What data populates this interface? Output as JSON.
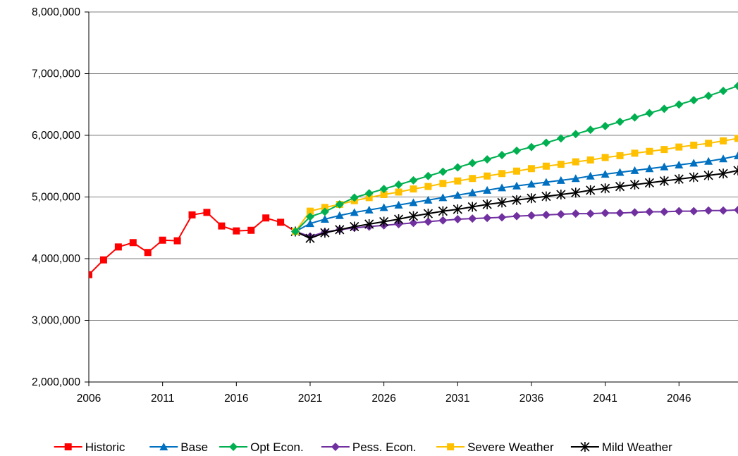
{
  "chart_data": {
    "type": "line",
    "title": "",
    "xlabel": "",
    "ylabel": "",
    "xlim": [
      2006,
      2050
    ],
    "ylim": [
      2000000,
      8000000
    ],
    "x_ticks": [
      2006,
      2011,
      2016,
      2021,
      2026,
      2031,
      2036,
      2041,
      2046
    ],
    "x_tick_labels": [
      "2006",
      "2011",
      "2016",
      "2021",
      "2026",
      "2031",
      "2036",
      "2041",
      "2046"
    ],
    "y_ticks": [
      2000000,
      3000000,
      4000000,
      5000000,
      6000000,
      7000000,
      8000000
    ],
    "y_tick_labels": [
      "2,000,000",
      "3,000,000",
      "4,000,000",
      "5,000,000",
      "6,000,000",
      "7,000,000",
      "8,000,000"
    ],
    "grid": "horizontal",
    "legend_position": "bottom",
    "series": [
      {
        "name": "Historic",
        "color": "#ff0000",
        "marker": "square",
        "x": [
          2006,
          2007,
          2008,
          2009,
          2010,
          2011,
          2012,
          2013,
          2014,
          2015,
          2016,
          2017,
          2018,
          2019,
          2020
        ],
        "values": [
          3740000,
          3980000,
          4190000,
          4260000,
          4100000,
          4300000,
          4290000,
          4710000,
          4750000,
          4530000,
          4450000,
          4460000,
          4660000,
          4590000,
          4440000
        ]
      },
      {
        "name": "Base",
        "color": "#0070c0",
        "marker": "triangle",
        "x": [
          2020,
          2021,
          2022,
          2023,
          2024,
          2025,
          2026,
          2027,
          2028,
          2029,
          2030,
          2031,
          2032,
          2033,
          2034,
          2035,
          2036,
          2037,
          2038,
          2039,
          2040,
          2041,
          2042,
          2043,
          2044,
          2045,
          2046,
          2047,
          2048,
          2049,
          2050
        ],
        "values": [
          4440000,
          4570000,
          4640000,
          4700000,
          4750000,
          4790000,
          4830000,
          4870000,
          4910000,
          4950000,
          4990000,
          5030000,
          5070000,
          5110000,
          5150000,
          5180000,
          5210000,
          5240000,
          5270000,
          5300000,
          5340000,
          5370000,
          5400000,
          5430000,
          5460000,
          5490000,
          5520000,
          5550000,
          5580000,
          5620000,
          5670000
        ]
      },
      {
        "name": "Opt Econ.",
        "color": "#00b050",
        "marker": "diamond",
        "x": [
          2020,
          2021,
          2022,
          2023,
          2024,
          2025,
          2026,
          2027,
          2028,
          2029,
          2030,
          2031,
          2032,
          2033,
          2034,
          2035,
          2036,
          2037,
          2038,
          2039,
          2040,
          2041,
          2042,
          2043,
          2044,
          2045,
          2046,
          2047,
          2048,
          2049,
          2050
        ],
        "values": [
          4440000,
          4680000,
          4760000,
          4880000,
          4990000,
          5060000,
          5130000,
          5200000,
          5270000,
          5340000,
          5410000,
          5480000,
          5550000,
          5610000,
          5680000,
          5750000,
          5810000,
          5880000,
          5950000,
          6020000,
          6090000,
          6150000,
          6220000,
          6290000,
          6360000,
          6430000,
          6500000,
          6570000,
          6640000,
          6720000,
          6800000
        ]
      },
      {
        "name": "Pess. Econ.",
        "color": "#7030a0",
        "marker": "diamond",
        "x": [
          2020,
          2021,
          2022,
          2023,
          2024,
          2025,
          2026,
          2027,
          2028,
          2029,
          2030,
          2031,
          2032,
          2033,
          2034,
          2035,
          2036,
          2037,
          2038,
          2039,
          2040,
          2041,
          2042,
          2043,
          2044,
          2045,
          2046,
          2047,
          2048,
          2049,
          2050
        ],
        "values": [
          4440000,
          4360000,
          4430000,
          4470000,
          4500000,
          4520000,
          4540000,
          4560000,
          4580000,
          4600000,
          4620000,
          4640000,
          4650000,
          4660000,
          4670000,
          4690000,
          4700000,
          4710000,
          4720000,
          4730000,
          4730000,
          4740000,
          4740000,
          4750000,
          4760000,
          4760000,
          4770000,
          4770000,
          4780000,
          4780000,
          4790000
        ]
      },
      {
        "name": "Severe Weather",
        "color": "#ffc000",
        "marker": "square",
        "x": [
          2020,
          2021,
          2022,
          2023,
          2024,
          2025,
          2026,
          2027,
          2028,
          2029,
          2030,
          2031,
          2032,
          2033,
          2034,
          2035,
          2036,
          2037,
          2038,
          2039,
          2040,
          2041,
          2042,
          2043,
          2044,
          2045,
          2046,
          2047,
          2048,
          2049,
          2050
        ],
        "values": [
          4440000,
          4770000,
          4830000,
          4880000,
          4940000,
          4990000,
          5040000,
          5080000,
          5130000,
          5170000,
          5220000,
          5260000,
          5300000,
          5340000,
          5380000,
          5420000,
          5460000,
          5500000,
          5530000,
          5570000,
          5600000,
          5640000,
          5670000,
          5710000,
          5740000,
          5770000,
          5810000,
          5840000,
          5870000,
          5910000,
          5950000
        ]
      },
      {
        "name": "Mild Weather",
        "color": "#000000",
        "marker": "star",
        "x": [
          2020,
          2021,
          2022,
          2023,
          2024,
          2025,
          2026,
          2027,
          2028,
          2029,
          2030,
          2031,
          2032,
          2033,
          2034,
          2035,
          2036,
          2037,
          2038,
          2039,
          2040,
          2041,
          2042,
          2043,
          2044,
          2045,
          2046,
          2047,
          2048,
          2049,
          2050
        ],
        "values": [
          4440000,
          4330000,
          4420000,
          4470000,
          4520000,
          4560000,
          4600000,
          4640000,
          4690000,
          4730000,
          4770000,
          4800000,
          4840000,
          4880000,
          4910000,
          4950000,
          4980000,
          5010000,
          5040000,
          5070000,
          5110000,
          5140000,
          5170000,
          5200000,
          5230000,
          5260000,
          5290000,
          5320000,
          5350000,
          5380000,
          5430000
        ]
      }
    ]
  }
}
